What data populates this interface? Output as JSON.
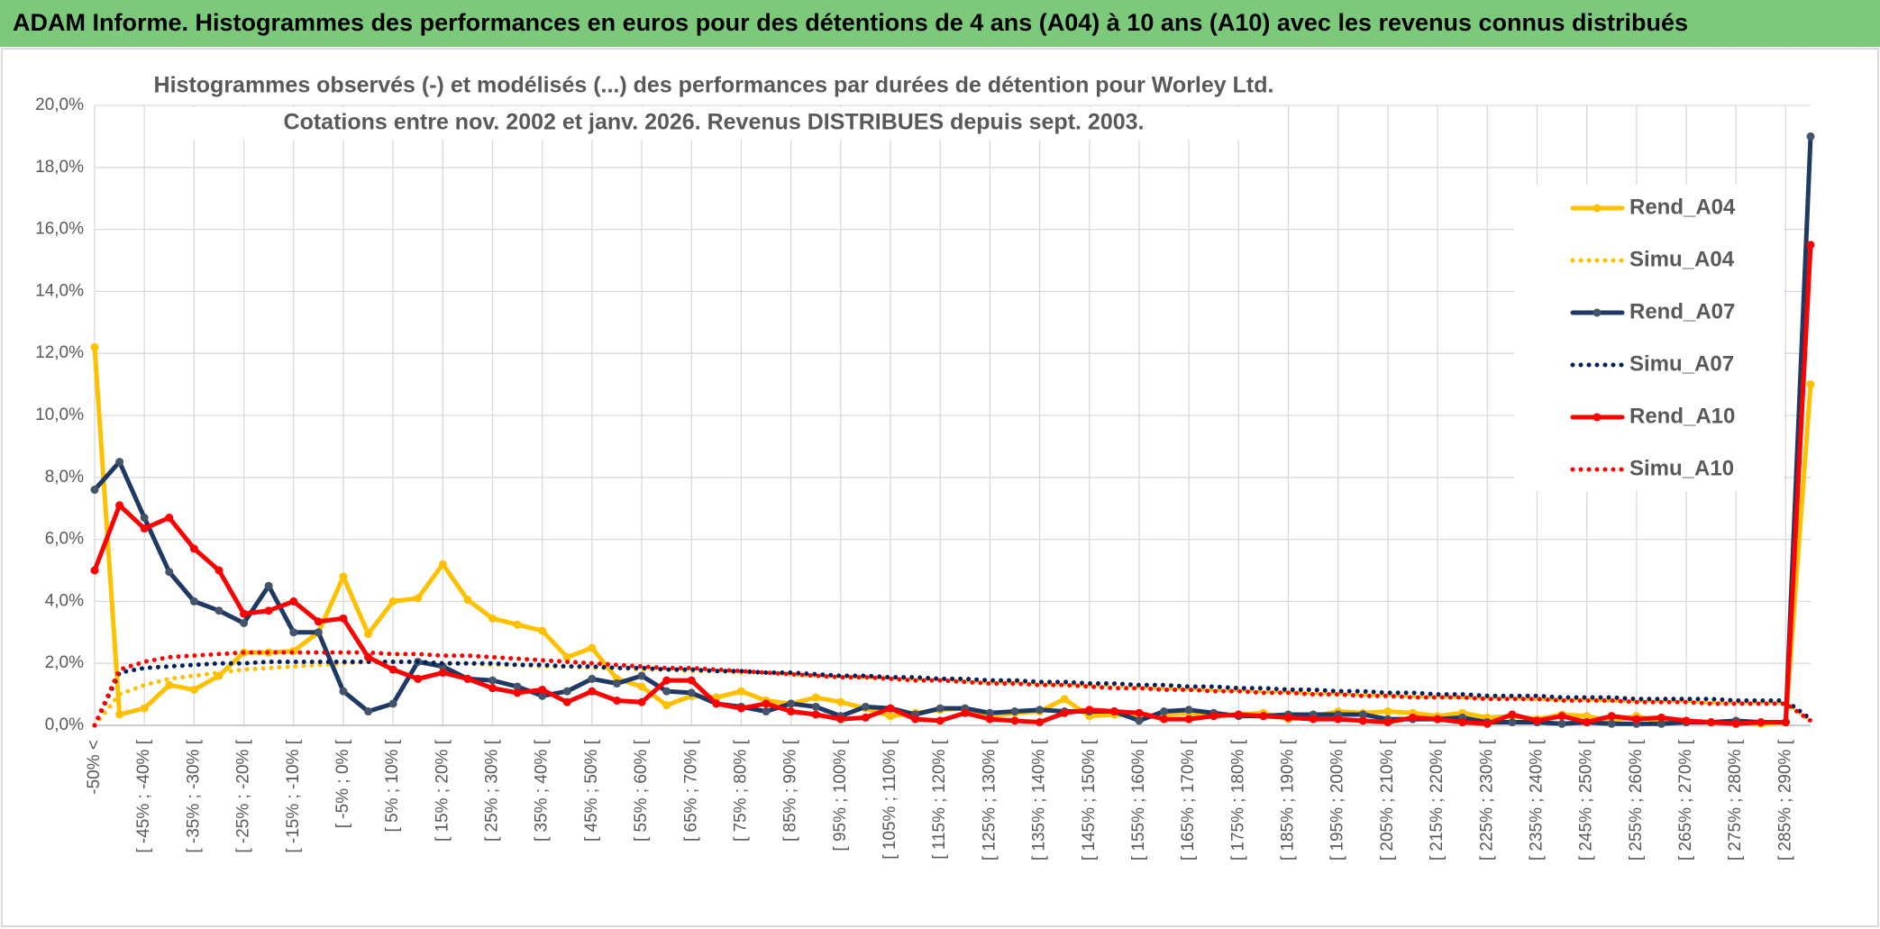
{
  "chart_data": {
    "type": "line",
    "title": "ADAM Informe. Histogrammes des performances en euros pour des détentions de 4 ans (A04) à 10 ans (A10) avec les revenus connus distribués",
    "subtitle": [
      "Histogrammes observés (-) et modélisés (...) des performances par durées de détention pour Worley Ltd.",
      "Cotations entre nov. 2002 et janv. 2026. Revenus DISTRIBUES depuis sept. 2003."
    ],
    "categories": [
      "-50% <",
      null,
      "[ -45% ; -40% [",
      null,
      "[ -35% ; -30% [",
      null,
      "[ -25% ; -20% [",
      null,
      "[ -15% ; -10% [",
      null,
      "[ -5% ; 0% [",
      null,
      "[ 5% ; 10% [",
      null,
      "[ 15% ; 20% [",
      null,
      "[ 25% ; 30% [",
      null,
      "[ 35% ; 40% [",
      null,
      "[ 45% ; 50% [",
      null,
      "[ 55% ; 60% [",
      null,
      "[ 65% ; 70% [",
      null,
      "[ 75% ; 80% [",
      null,
      "[ 85% ; 90% [",
      null,
      "[ 95% ; 100% [",
      null,
      "[ 105% ; 110% [",
      null,
      "[ 115% ; 120% [",
      null,
      "[ 125% ; 130% [",
      null,
      "[ 135% ; 140% [",
      null,
      "[ 145% ; 150% [",
      null,
      "[ 155% ; 160% [",
      null,
      "[ 165% ; 170% [",
      null,
      "[ 175% ; 180% [",
      null,
      "[ 185% ; 190% [",
      null,
      "[ 195% ; 200% [",
      null,
      "[ 205% ; 210% [",
      null,
      "[ 215% ; 220% [",
      null,
      "[ 225% ; 230% [",
      null,
      "[ 235% ; 240% [",
      null,
      "[ 245% ; 250% [",
      null,
      "[ 255% ; 260% [",
      null,
      "[ 265% ; 270% [",
      null,
      "[ 275% ; 280% [",
      null,
      "[ 285% ; 290% [",
      null
    ],
    "ylim": [
      0,
      20
    ],
    "yticks": [
      {
        "value": 0,
        "label": "0,0%"
      },
      {
        "value": 2,
        "label": "2,0%"
      },
      {
        "value": 4,
        "label": "4,0%"
      },
      {
        "value": 6,
        "label": "6,0%"
      },
      {
        "value": 8,
        "label": "8,0%"
      },
      {
        "value": 10,
        "label": "10,0%"
      },
      {
        "value": 12,
        "label": "12,0%"
      },
      {
        "value": 14,
        "label": "14,0%"
      },
      {
        "value": 16,
        "label": "16,0%"
      },
      {
        "value": 18,
        "label": "18,0%"
      },
      {
        "value": 20,
        "label": "20,0%"
      }
    ],
    "grid": true,
    "legend": "right",
    "series": [
      {
        "name": "Rend_A04",
        "color": "#ffc000",
        "style": "solid",
        "values": [
          12.2,
          0.35,
          0.55,
          1.3,
          1.15,
          1.6,
          2.35,
          2.35,
          2.4,
          3.0,
          4.8,
          2.95,
          4.0,
          4.1,
          5.2,
          4.05,
          3.45,
          3.25,
          3.05,
          2.2,
          2.5,
          1.5,
          1.25,
          0.65,
          0.95,
          0.9,
          1.1,
          0.8,
          0.7,
          0.9,
          0.75,
          0.55,
          0.3,
          0.4,
          0.5,
          0.55,
          0.3,
          0.4,
          0.45,
          0.85,
          0.3,
          0.35,
          0.3,
          0.35,
          0.4,
          0.3,
          0.35,
          0.4,
          0.2,
          0.3,
          0.45,
          0.4,
          0.45,
          0.4,
          0.3,
          0.4,
          0.25,
          0.3,
          0.2,
          0.35,
          0.3,
          0.15,
          0.3,
          0.1,
          0.15,
          0.1,
          0.1,
          0.05,
          0.1,
          11.0
        ]
      },
      {
        "name": "Simu_A04",
        "color": "#ffc000",
        "style": "dotted",
        "values": [
          0,
          1.0,
          1.3,
          1.5,
          1.6,
          1.7,
          1.8,
          1.85,
          1.9,
          1.95,
          2.0,
          2.05,
          2.05,
          2.05,
          2.0,
          2.0,
          1.95,
          1.95,
          1.9,
          1.9,
          1.85,
          1.85,
          1.8,
          1.8,
          1.75,
          1.75,
          1.7,
          1.7,
          1.65,
          1.6,
          1.6,
          1.55,
          1.55,
          1.5,
          1.5,
          1.45,
          1.4,
          1.4,
          1.35,
          1.35,
          1.3,
          1.3,
          1.25,
          1.2,
          1.2,
          1.15,
          1.15,
          1.1,
          1.1,
          1.05,
          1.05,
          1.0,
          1.0,
          0.95,
          0.95,
          0.9,
          0.9,
          0.9,
          0.85,
          0.85,
          0.85,
          0.8,
          0.8,
          0.8,
          0.8,
          0.75,
          0.75,
          0.75,
          0.75,
          0.15
        ]
      },
      {
        "name": "Rend_A07",
        "color": "#1f3864",
        "style": "solid",
        "values": [
          7.6,
          8.5,
          6.7,
          4.95,
          4.0,
          3.7,
          3.3,
          4.5,
          3.0,
          3.0,
          1.1,
          0.45,
          0.7,
          2.05,
          1.9,
          1.5,
          1.45,
          1.25,
          0.95,
          1.1,
          1.5,
          1.35,
          1.6,
          1.1,
          1.05,
          0.7,
          0.6,
          0.45,
          0.7,
          0.6,
          0.3,
          0.6,
          0.55,
          0.35,
          0.55,
          0.55,
          0.4,
          0.45,
          0.5,
          0.45,
          0.45,
          0.45,
          0.15,
          0.45,
          0.5,
          0.4,
          0.3,
          0.3,
          0.35,
          0.35,
          0.35,
          0.35,
          0.2,
          0.2,
          0.2,
          0.25,
          0.1,
          0.1,
          0.1,
          0.05,
          0.1,
          0.05,
          0.05,
          0.05,
          0.1,
          0.1,
          0.15,
          0.1,
          0.1,
          19.0
        ]
      },
      {
        "name": "Simu_A07",
        "color": "#002060",
        "style": "dotted",
        "values": [
          0,
          1.7,
          1.85,
          1.9,
          1.95,
          2.0,
          2.0,
          2.05,
          2.05,
          2.05,
          2.05,
          2.05,
          2.05,
          2.05,
          2.0,
          2.0,
          2.0,
          1.95,
          1.95,
          1.9,
          1.9,
          1.85,
          1.85,
          1.8,
          1.8,
          1.75,
          1.75,
          1.7,
          1.7,
          1.65,
          1.6,
          1.6,
          1.55,
          1.55,
          1.5,
          1.5,
          1.45,
          1.45,
          1.4,
          1.4,
          1.35,
          1.35,
          1.3,
          1.3,
          1.25,
          1.25,
          1.2,
          1.2,
          1.15,
          1.15,
          1.1,
          1.1,
          1.05,
          1.05,
          1.0,
          1.0,
          0.95,
          0.95,
          0.95,
          0.9,
          0.9,
          0.9,
          0.85,
          0.85,
          0.85,
          0.85,
          0.8,
          0.8,
          0.8,
          0.2
        ]
      },
      {
        "name": "Rend_A10",
        "color": "#ff0000",
        "style": "solid",
        "values": [
          5.0,
          7.1,
          6.35,
          6.7,
          5.7,
          5.0,
          3.6,
          3.7,
          4.0,
          3.35,
          3.45,
          2.2,
          1.8,
          1.5,
          1.7,
          1.5,
          1.2,
          1.05,
          1.15,
          0.75,
          1.1,
          0.8,
          0.75,
          1.45,
          1.45,
          0.7,
          0.55,
          0.7,
          0.45,
          0.35,
          0.2,
          0.25,
          0.55,
          0.2,
          0.15,
          0.4,
          0.2,
          0.15,
          0.1,
          0.4,
          0.5,
          0.45,
          0.4,
          0.2,
          0.2,
          0.3,
          0.35,
          0.3,
          0.25,
          0.2,
          0.2,
          0.15,
          0.1,
          0.25,
          0.2,
          0.1,
          0.05,
          0.35,
          0.15,
          0.3,
          0.1,
          0.3,
          0.2,
          0.25,
          0.15,
          0.1,
          0.05,
          0.1,
          0.1,
          15.5
        ]
      },
      {
        "name": "Simu_A10",
        "color": "#ff0000",
        "style": "dotted",
        "values": [
          0,
          1.8,
          2.05,
          2.2,
          2.25,
          2.3,
          2.35,
          2.35,
          2.35,
          2.35,
          2.35,
          2.35,
          2.3,
          2.3,
          2.25,
          2.25,
          2.2,
          2.15,
          2.1,
          2.05,
          2.0,
          1.95,
          1.9,
          1.85,
          1.85,
          1.8,
          1.75,
          1.7,
          1.65,
          1.6,
          1.55,
          1.55,
          1.5,
          1.45,
          1.45,
          1.4,
          1.35,
          1.35,
          1.3,
          1.3,
          1.25,
          1.2,
          1.2,
          1.15,
          1.15,
          1.1,
          1.1,
          1.05,
          1.05,
          1.0,
          1.0,
          0.95,
          0.95,
          0.9,
          0.9,
          0.9,
          0.85,
          0.85,
          0.85,
          0.8,
          0.8,
          0.8,
          0.75,
          0.75,
          0.75,
          0.7,
          0.7,
          0.7,
          0.7,
          0.15
        ]
      }
    ]
  }
}
